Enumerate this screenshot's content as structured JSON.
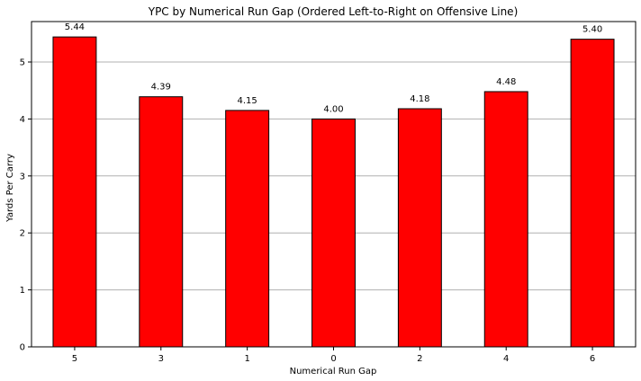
{
  "chart_data": {
    "type": "bar",
    "title": "YPC by Numerical Run Gap (Ordered Left-to-Right on Offensive Line)",
    "xlabel": "Numerical Run Gap",
    "ylabel": "Yards Per Carry",
    "categories": [
      "5",
      "3",
      "1",
      "0",
      "2",
      "4",
      "6"
    ],
    "values": [
      5.44,
      4.39,
      4.15,
      4.0,
      4.18,
      4.48,
      5.4
    ],
    "data_labels": [
      "5.44",
      "4.39",
      "4.15",
      "4.00",
      "4.18",
      "4.48",
      "5.40"
    ],
    "ylim": [
      0,
      5.71
    ],
    "yticks": [
      0,
      1,
      2,
      3,
      4,
      5
    ],
    "ytick_labels": [
      "0",
      "1",
      "2",
      "3",
      "4",
      "5"
    ],
    "grid": "y",
    "legend": "none",
    "bar_color": "#ff0000",
    "bar_edge_color": "#000000",
    "grid_color": "#b0b0b0"
  }
}
